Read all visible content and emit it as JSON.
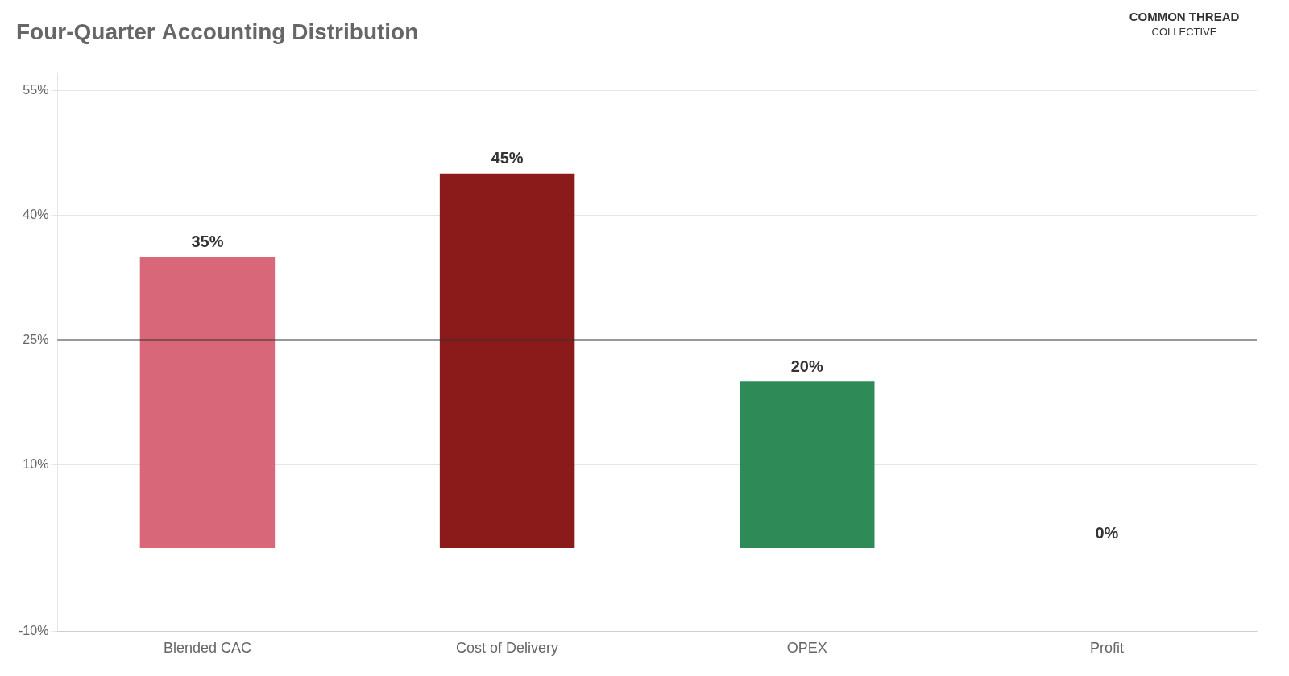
{
  "chart_data": {
    "type": "bar",
    "title": "Four-Quarter Accounting Distribution",
    "categories": [
      "Blended CAC",
      "Cost of Delivery",
      "OPEX",
      "Profit"
    ],
    "values": [
      35,
      45,
      20,
      0
    ],
    "value_labels": [
      "35%",
      "45%",
      "20%",
      "0%"
    ],
    "data_labels": true,
    "colors": [
      "#d9677a",
      "#8b1a1a",
      "#2e8b57",
      "#8b1a1a"
    ],
    "ylim": [
      -10,
      57
    ],
    "yticks": [
      {
        "value": -10,
        "label": "-10%"
      },
      {
        "value": 10,
        "label": "10%"
      },
      {
        "value": 25,
        "label": "25%"
      },
      {
        "value": 40,
        "label": "40%"
      },
      {
        "value": 55,
        "label": "55%"
      }
    ],
    "grid": true,
    "reference_line": 25,
    "annotations": [
      "COMMON THREAD",
      "COLLECTIVE"
    ]
  }
}
